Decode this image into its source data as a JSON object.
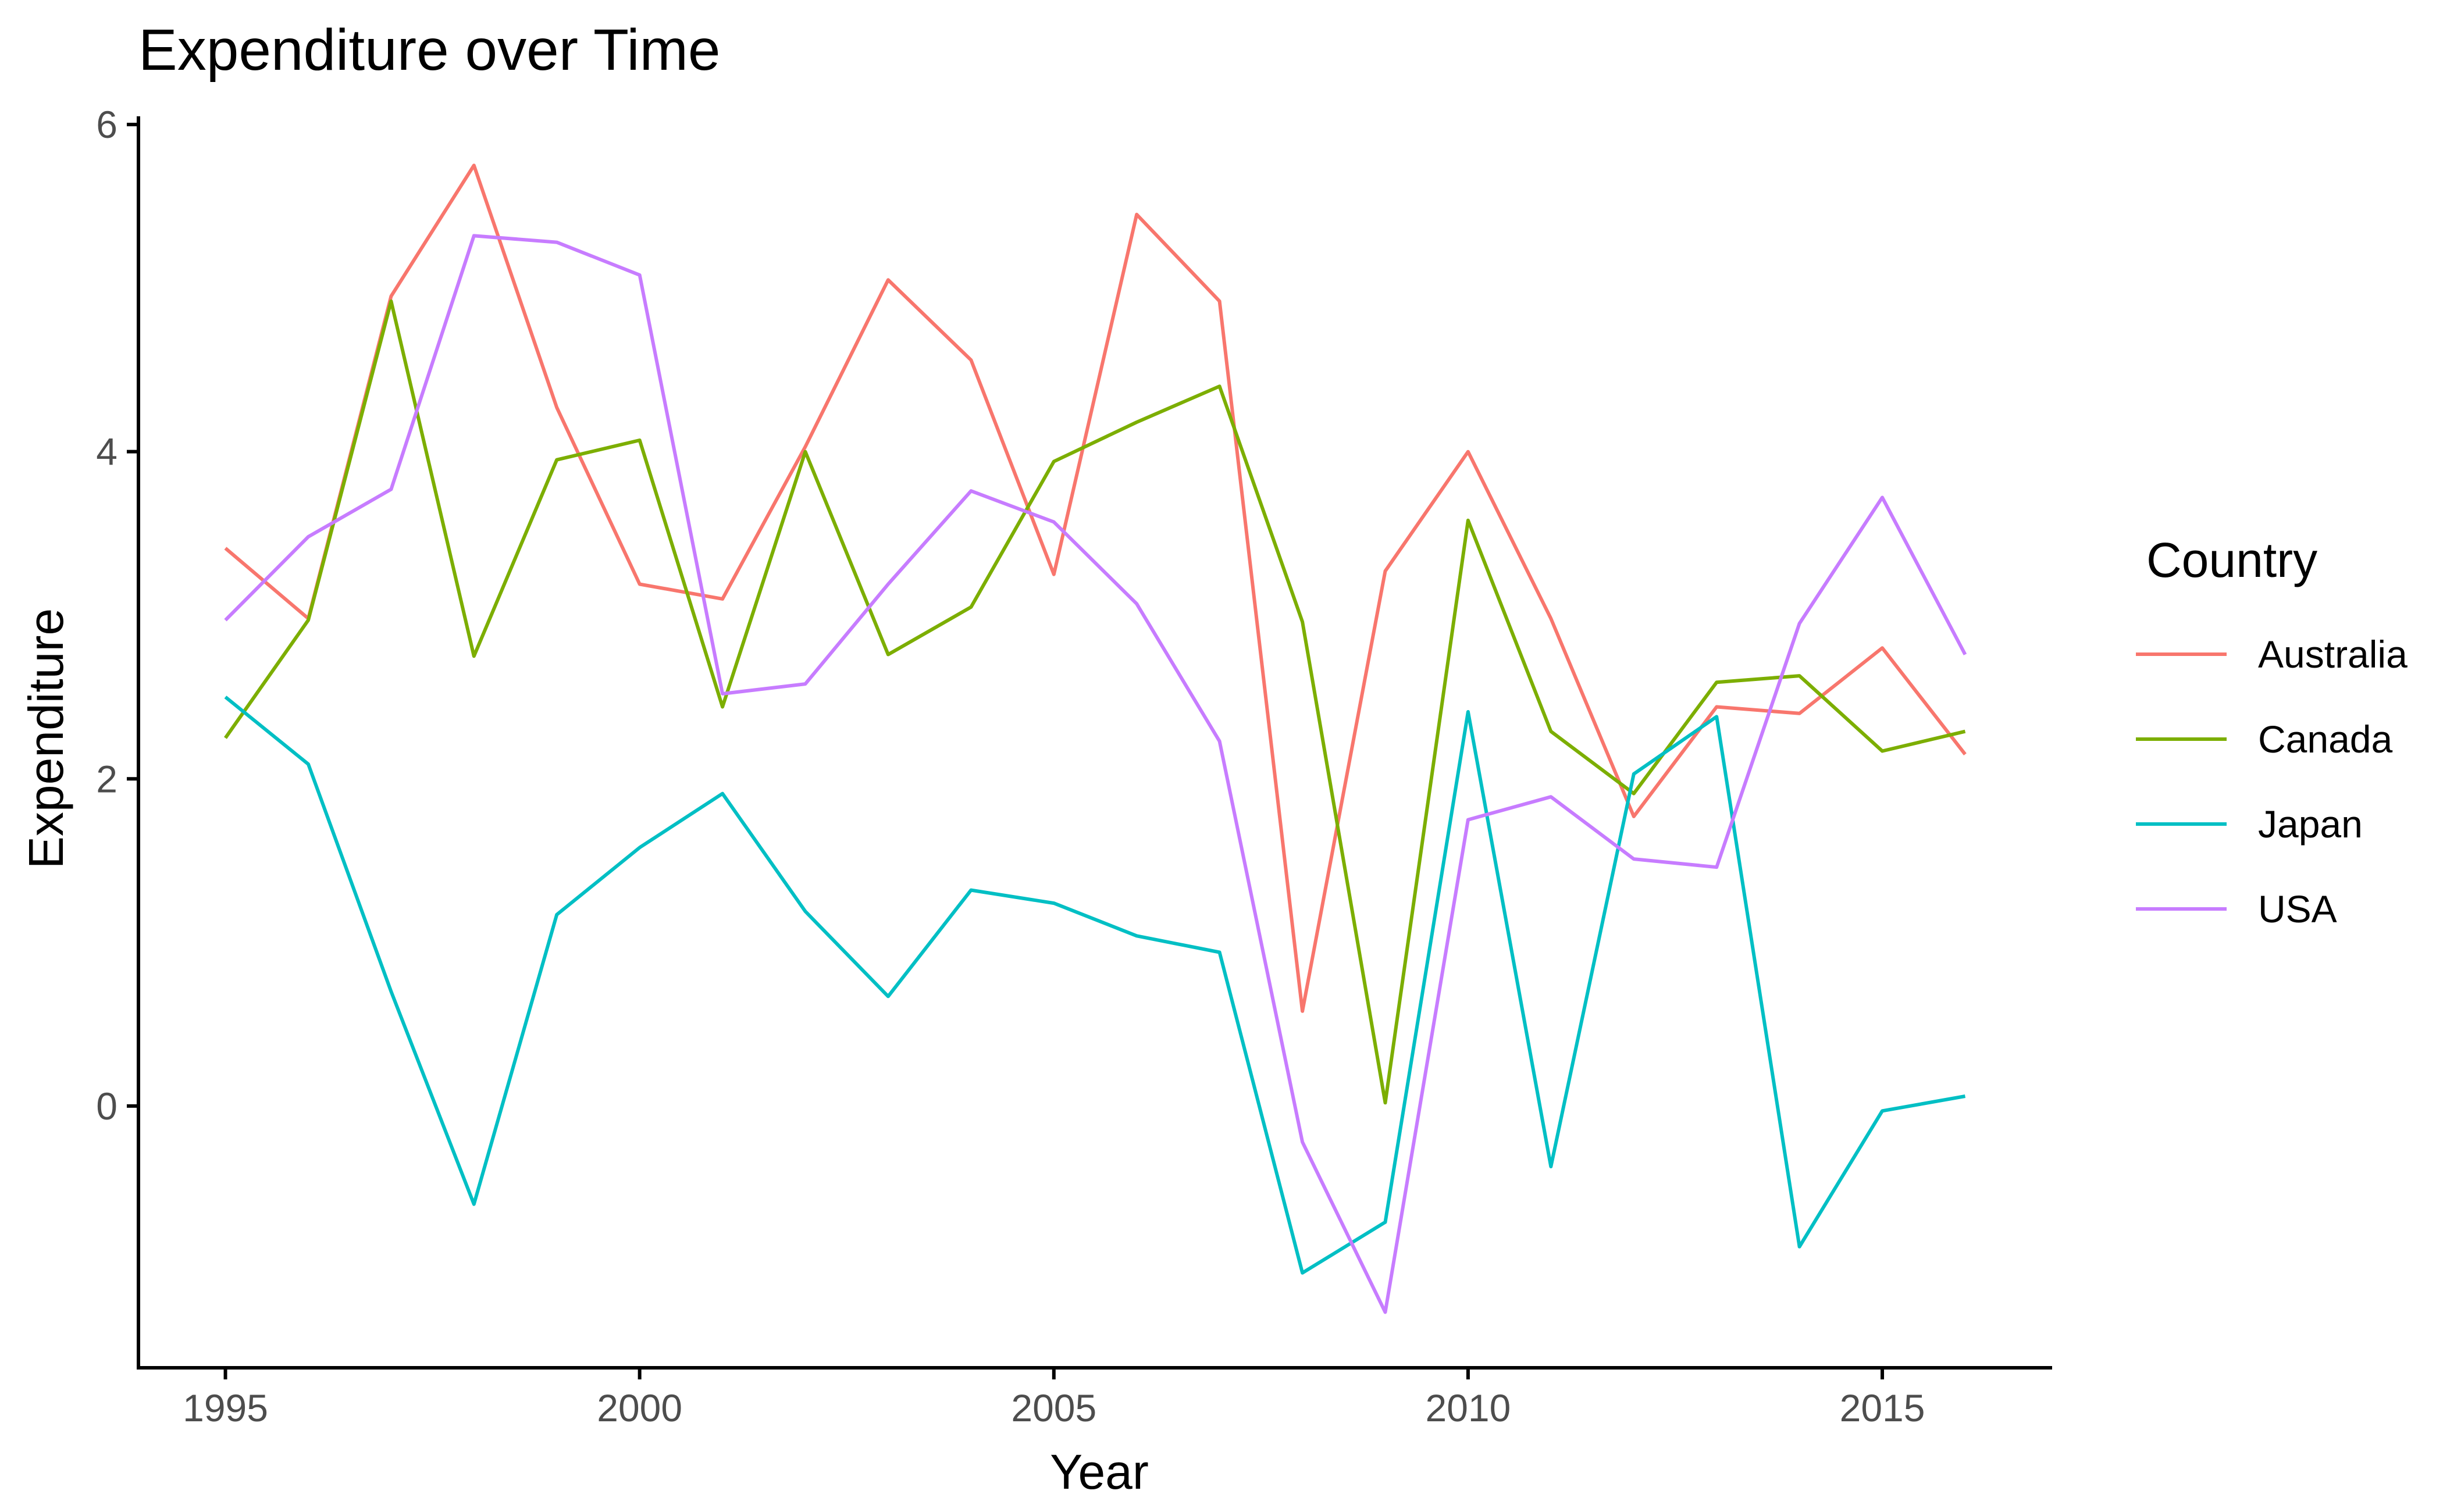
{
  "chart_data": {
    "type": "line",
    "title": "Expenditure over Time",
    "xlabel": "Year",
    "ylabel": "Expenditure",
    "x": [
      1995,
      1996,
      1997,
      1998,
      1999,
      2000,
      2001,
      2002,
      2003,
      2004,
      2005,
      2006,
      2007,
      2008,
      2009,
      2010,
      2011,
      2012,
      2013,
      2014,
      2015,
      2016
    ],
    "xlim": [
      1993.95,
      2017.05
    ],
    "ylim": [
      -1.6,
      6.05
    ],
    "xticks": [
      1995,
      2000,
      2005,
      2010,
      2015
    ],
    "yticks": [
      0,
      2,
      4,
      6
    ],
    "xtick_labels": [
      "1995",
      "2000",
      "2005",
      "2010",
      "2015"
    ],
    "ytick_labels": [
      "0",
      "2",
      "4",
      "6"
    ],
    "grid": false,
    "legend": {
      "title": "Country",
      "position": "right"
    },
    "series": [
      {
        "name": "Australia",
        "color": "#F8766D",
        "values": [
          3.41,
          2.98,
          4.95,
          5.75,
          4.27,
          3.19,
          3.1,
          4.03,
          5.05,
          4.56,
          3.25,
          5.45,
          4.92,
          0.58,
          3.27,
          4.0,
          2.98,
          1.77,
          2.44,
          2.4,
          2.8,
          2.15
        ]
      },
      {
        "name": "Canada",
        "color": "#7CAE00",
        "values": [
          2.25,
          2.97,
          4.92,
          2.75,
          3.95,
          4.07,
          2.44,
          4.0,
          2.76,
          3.05,
          3.94,
          4.18,
          4.4,
          2.96,
          0.02,
          3.58,
          2.29,
          1.91,
          2.59,
          2.63,
          2.17,
          2.29
        ]
      },
      {
        "name": "Japan",
        "color": "#00BFC4",
        "values": [
          2.5,
          2.09,
          0.7,
          -0.6,
          1.17,
          1.58,
          1.91,
          1.19,
          0.67,
          1.32,
          1.24,
          1.04,
          0.94,
          -1.02,
          -0.71,
          2.41,
          -0.37,
          2.03,
          2.38,
          -0.86,
          -0.03,
          0.06
        ]
      },
      {
        "name": "USA",
        "color": "#C77CFF",
        "values": [
          2.97,
          3.48,
          3.77,
          5.32,
          5.28,
          5.08,
          2.52,
          2.58,
          3.19,
          3.76,
          3.57,
          3.07,
          2.23,
          -0.22,
          -1.26,
          1.75,
          1.89,
          1.51,
          1.46,
          2.95,
          3.72,
          2.76
        ]
      }
    ]
  }
}
